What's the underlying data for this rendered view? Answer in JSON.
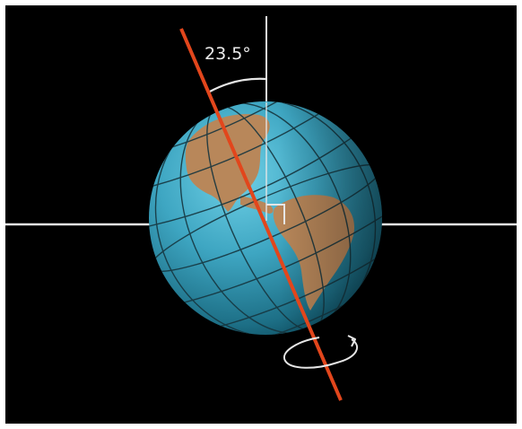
{
  "diagram": {
    "angle_label": "23.5°",
    "tilt_degrees": 23.5,
    "colors": {
      "background": "#000000",
      "ocean": "#3ea6c2",
      "land": "#b8875a",
      "grid": "#17363f",
      "axis": "#e2461c",
      "reference_lines": "#e6e6e6"
    },
    "icons": [
      "globe-icon",
      "rotation-arrow-icon",
      "right-angle-icon"
    ]
  }
}
